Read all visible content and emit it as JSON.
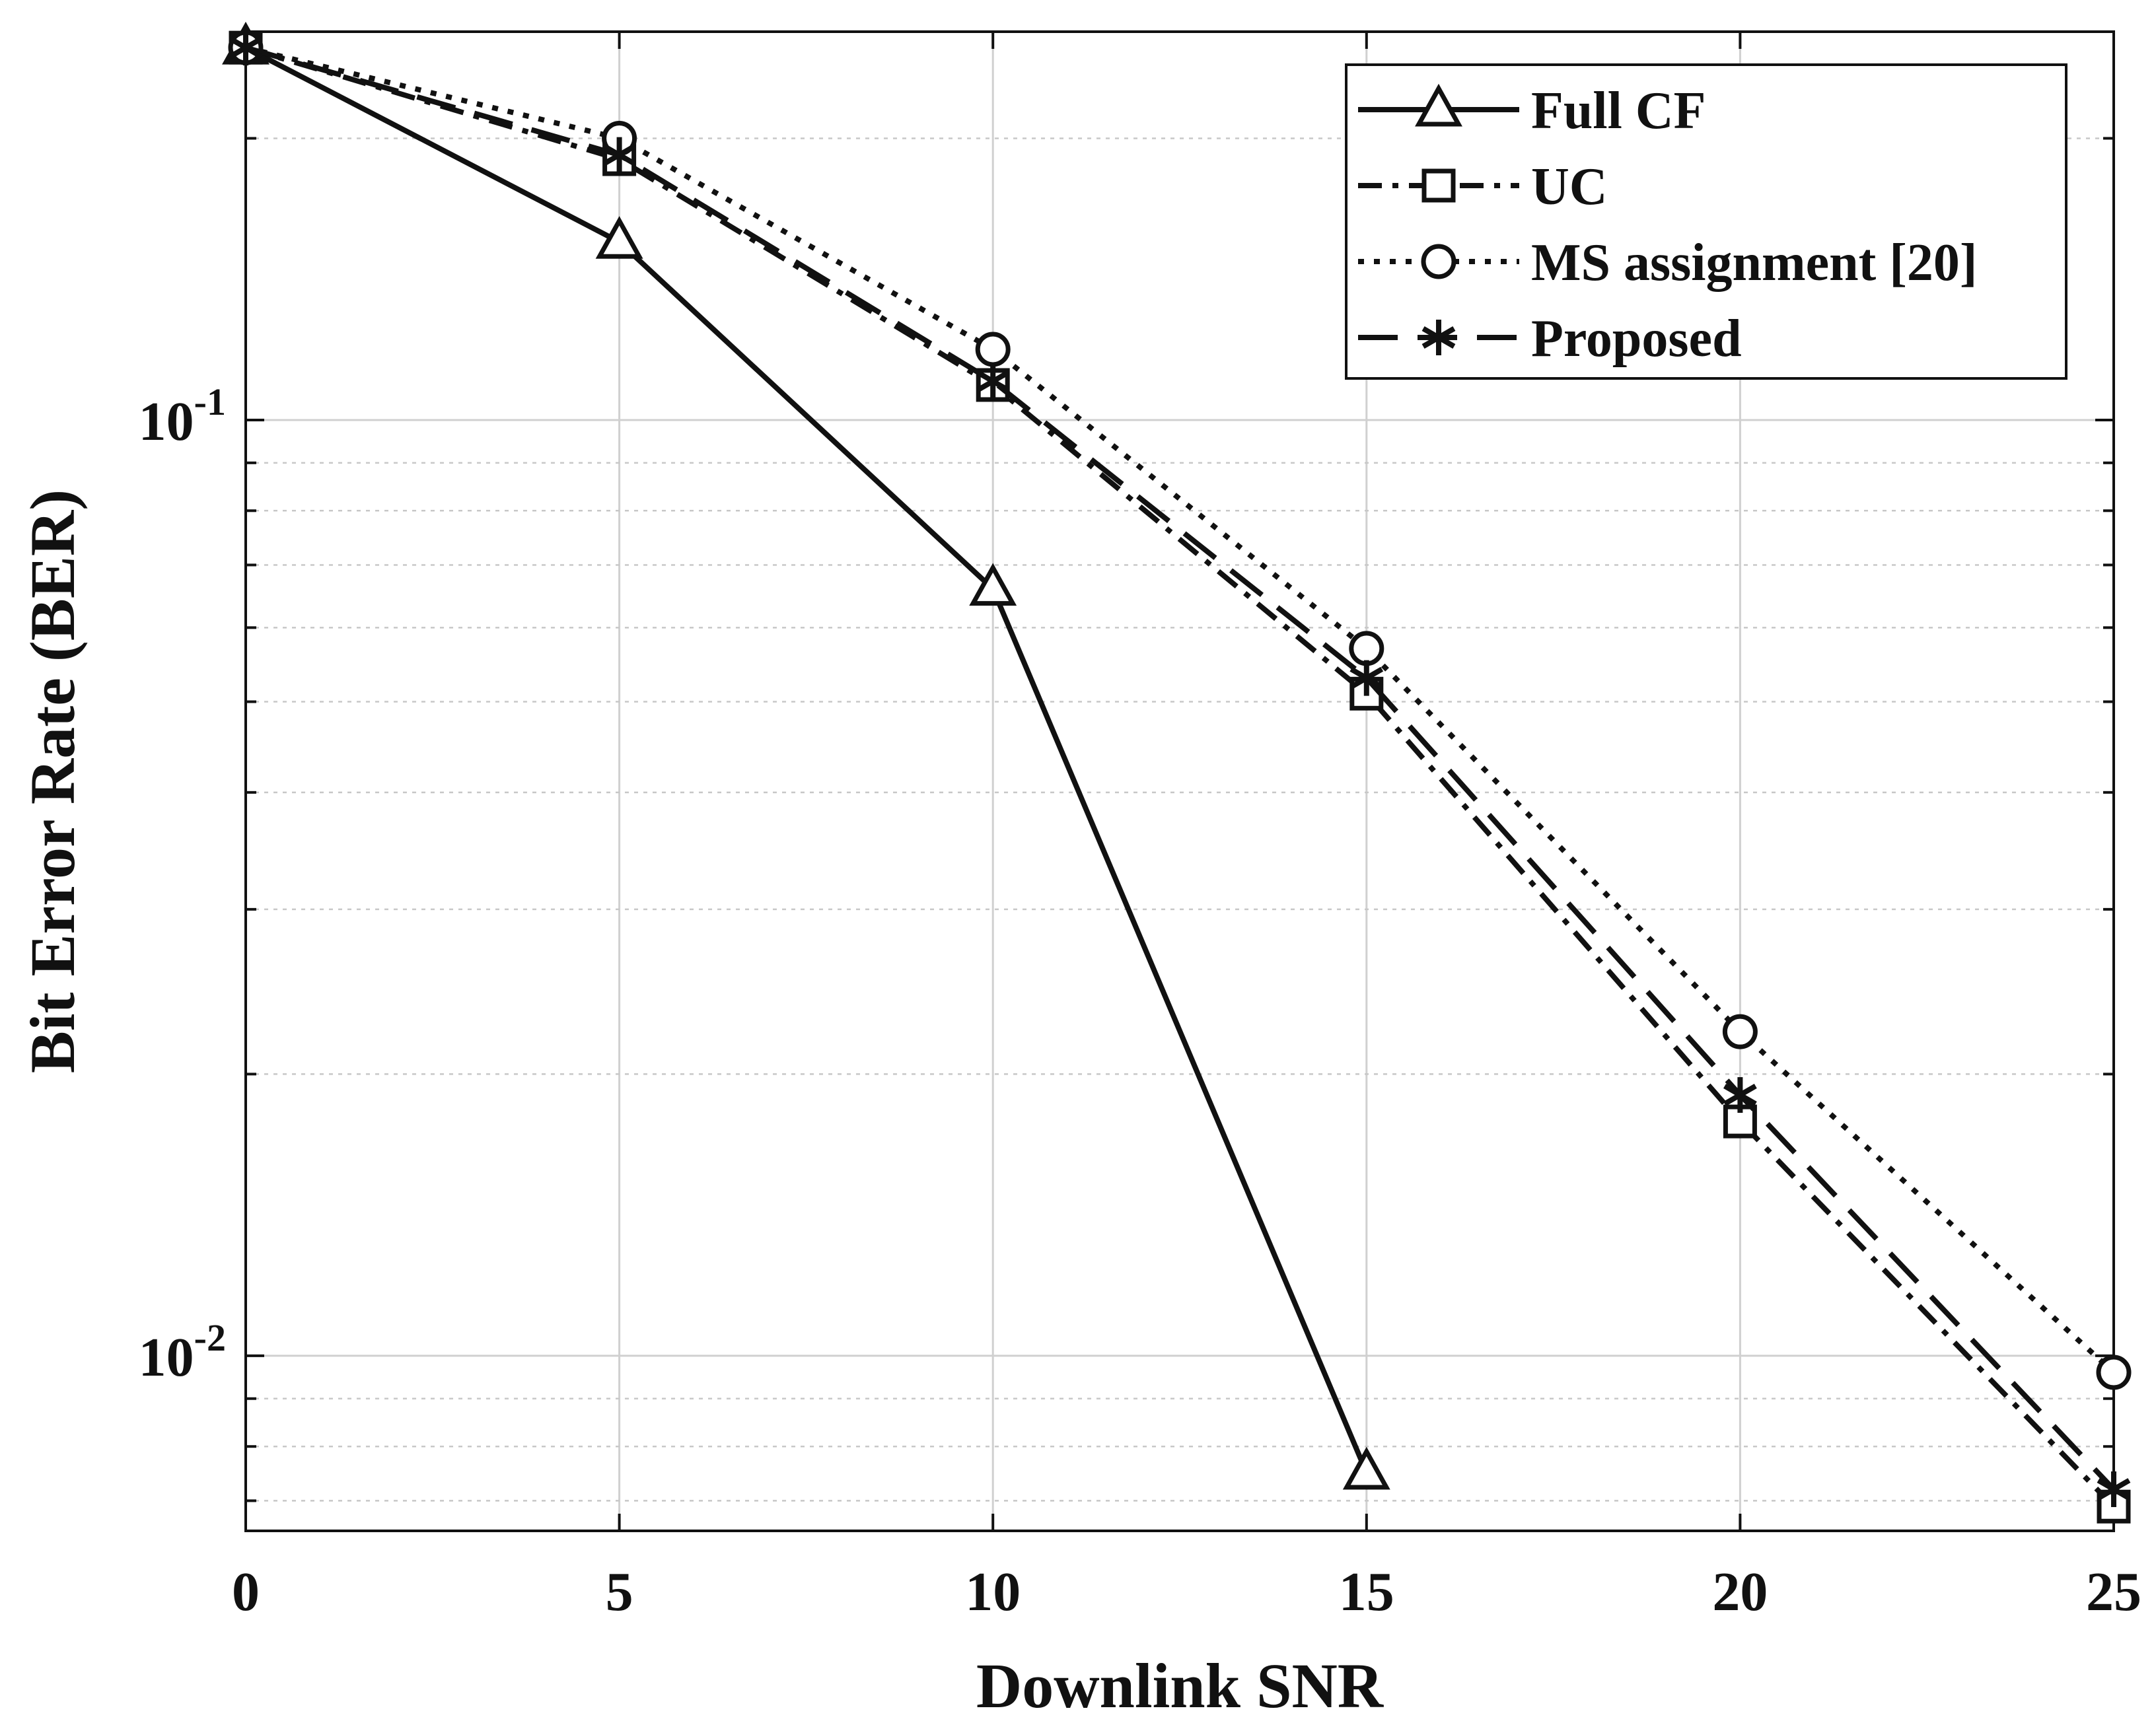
{
  "chart_data": {
    "type": "line",
    "title": "",
    "xlabel": "Downlink SNR",
    "ylabel": "Bit Error Rate (BER)",
    "yscale": "log",
    "xlim": [
      0,
      25
    ],
    "ylim": [
      0.0065,
      0.26
    ],
    "grid": true,
    "legend_position": "top-right",
    "x": [
      0,
      5,
      10,
      15,
      20,
      25
    ],
    "x_ticks": [
      {
        "value": 0,
        "label": "0"
      },
      {
        "value": 5,
        "label": "5"
      },
      {
        "value": 10,
        "label": "10"
      },
      {
        "value": 15,
        "label": "15"
      },
      {
        "value": 20,
        "label": "20"
      },
      {
        "value": 25,
        "label": "25"
      }
    ],
    "y_ticks": [
      {
        "value": 0.1,
        "base": "10",
        "exp": "-1"
      },
      {
        "value": 0.01,
        "base": "10",
        "exp": "-2"
      }
    ],
    "series": [
      {
        "name": "Full CF",
        "line": "solid",
        "marker": "triangle",
        "x": [
          0,
          5,
          10,
          15
        ],
        "values": [
          0.25,
          0.155,
          0.066,
          0.0075
        ]
      },
      {
        "name": "UC",
        "line": "dashdot",
        "marker": "square",
        "x": [
          0,
          5,
          10,
          15,
          20,
          25
        ],
        "values": [
          0.25,
          0.19,
          0.109,
          0.051,
          0.0178,
          0.0069
        ]
      },
      {
        "name": "MS assignment [20]",
        "line": "dotted",
        "marker": "circle",
        "x": [
          0,
          5,
          10,
          15,
          20,
          25
        ],
        "values": [
          0.25,
          0.2,
          0.119,
          0.057,
          0.0222,
          0.0096
        ]
      },
      {
        "name": "Proposed",
        "line": "dashed",
        "marker": "asterisk",
        "x": [
          0,
          5,
          10,
          15,
          20,
          25
        ],
        "values": [
          0.25,
          0.192,
          0.11,
          0.053,
          0.019,
          0.0072
        ]
      }
    ]
  }
}
